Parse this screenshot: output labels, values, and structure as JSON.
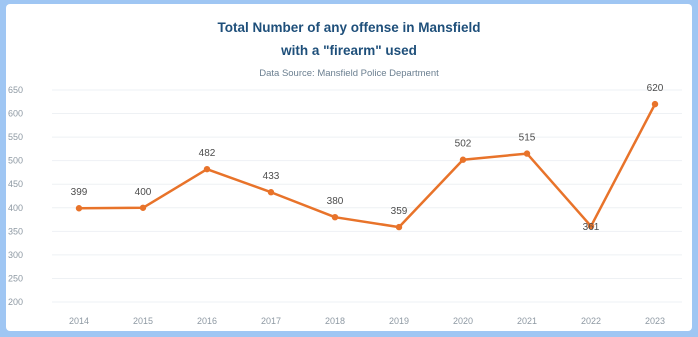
{
  "colors": {
    "background": "#9fc6f3",
    "plot_background": "#ffffff",
    "title": "#1e4f7a",
    "line": "#e8732a",
    "marker": "#e8732a",
    "grid": "#eef1f4"
  },
  "chart_data": {
    "type": "line",
    "title": "Total Number of any offense in Mansfield",
    "title_line2": "with a \"firearm\" used",
    "subtitle": "Data Source: Mansfield Police Department",
    "xlabel": "",
    "ylabel": "",
    "categories": [
      "2014",
      "2015",
      "2016",
      "2017",
      "2018",
      "2019",
      "2020",
      "2021",
      "2022",
      "2023"
    ],
    "series": [
      {
        "values": [
          399,
          400,
          482,
          433,
          380,
          359,
          502,
          515,
          361,
          620
        ],
        "labels": [
          "399",
          "400",
          "482",
          "433",
          "380",
          "359",
          "502",
          "515",
          "361",
          "620"
        ]
      }
    ],
    "ylim": [
      200,
      650
    ],
    "yticks": [
      200,
      250,
      300,
      350,
      400,
      450,
      500,
      550,
      600,
      650
    ],
    "ytick_labels": [
      "200",
      "250",
      "300",
      "350",
      "400",
      "450",
      "500",
      "550",
      "600",
      "650"
    ],
    "grid": true,
    "legend": "none",
    "markers": true
  }
}
